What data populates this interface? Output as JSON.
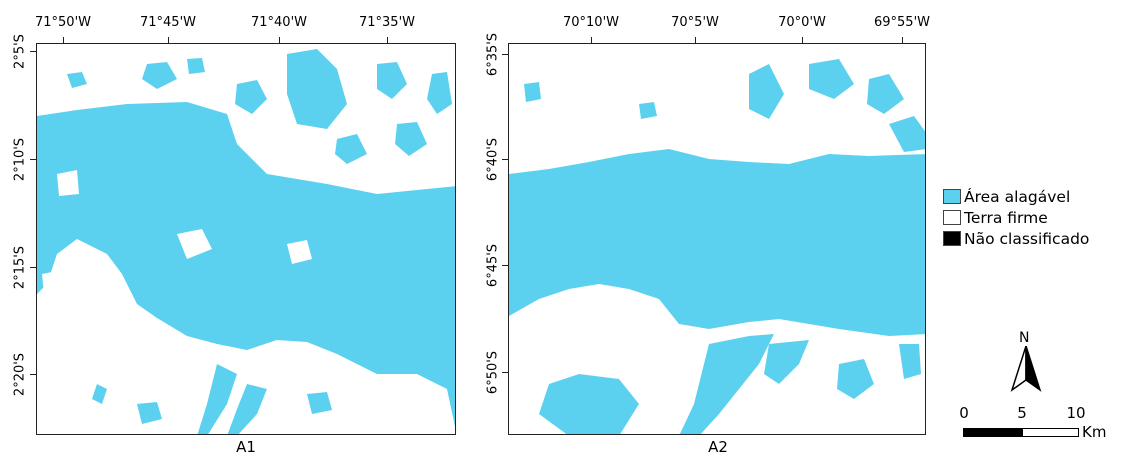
{
  "colors": {
    "flooded": "#5bd1ef",
    "terra_firme": "#ffffff",
    "unclassified": "#000000"
  },
  "panels": [
    {
      "label": "A1",
      "lon_ticks": [
        "71°50'W",
        "71°45'W",
        "71°40'W",
        "71°35'W"
      ],
      "lat_ticks": [
        "2°5'S",
        "2°10'S",
        "2°15'S",
        "2°20'S"
      ]
    },
    {
      "label": "A2",
      "lon_ticks": [
        "70°10'W",
        "70°5'W",
        "70°0'W",
        "69°55'W"
      ],
      "lat_ticks": [
        "6°35'S",
        "6°40'S",
        "6°45'S",
        "6°50'S"
      ]
    }
  ],
  "legend": [
    {
      "label": "Área alagável",
      "color": "#5bd1ef"
    },
    {
      "label": "Terra firme",
      "color": "#ffffff"
    },
    {
      "label": "Não classificado",
      "color": "#000000"
    }
  ],
  "north_arrow": {
    "label": "N"
  },
  "scale_bar": {
    "ticks": [
      "0",
      "5",
      "10"
    ],
    "unit": "Km"
  }
}
